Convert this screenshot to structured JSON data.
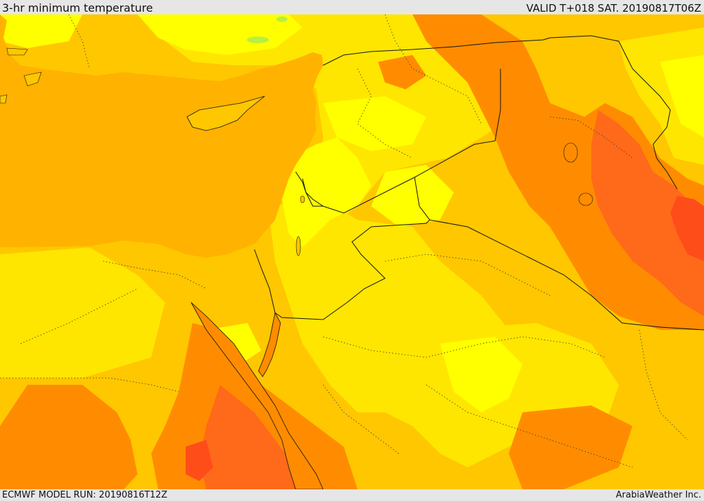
{
  "header": {
    "title": "3-hr minimum temperature",
    "valid": "VALID T+018 SAT. 20190817T06Z"
  },
  "footer": {
    "model_run": "ECMWF MODEL RUN: 20190816T12Z",
    "credit": "ArabiaWeather Inc."
  },
  "map": {
    "colors": {
      "sea": "#ffb200",
      "land_base": "#ffc700",
      "pale_yellow": "#ffe600",
      "bright_yellow": "#ffff00",
      "orange": "#ff8c00",
      "deep_orange": "#ff6a1a",
      "red_orange": "#ff4d1a",
      "green": "#b8f040",
      "border": "#111111"
    }
  }
}
